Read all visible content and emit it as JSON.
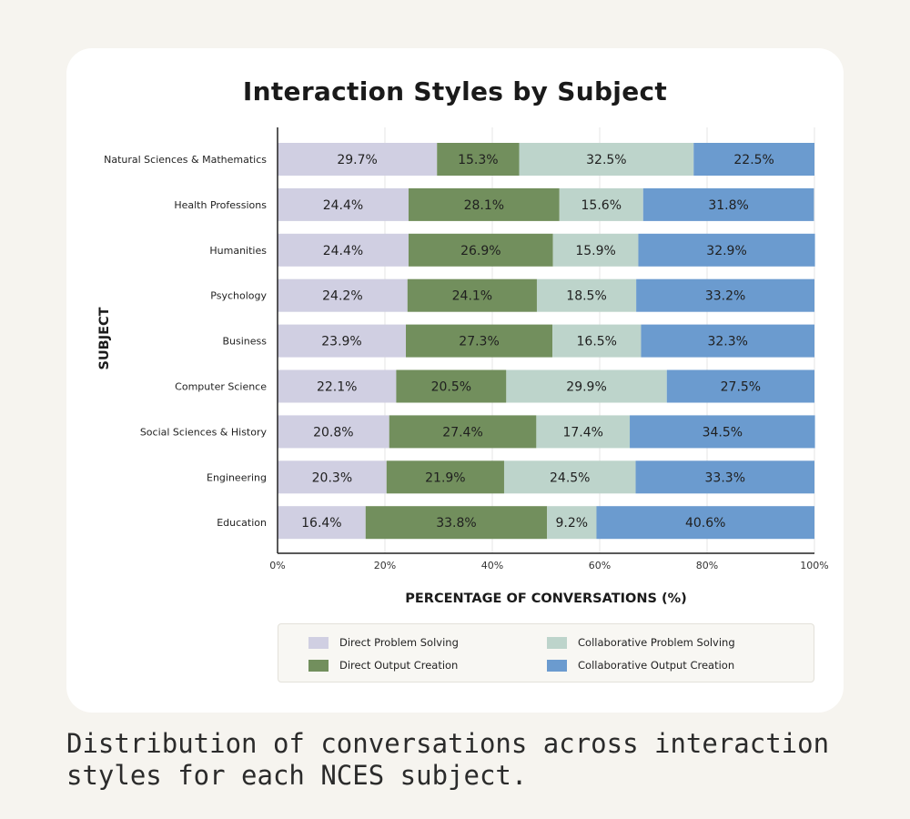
{
  "chart_data": {
    "type": "bar",
    "orientation": "horizontal",
    "stacked": true,
    "title": "Interaction Styles by Subject",
    "xlabel": "PERCENTAGE OF CONVERSATIONS (%)",
    "ylabel": "SUBJECT",
    "xlim": [
      0,
      100
    ],
    "xticks": [
      "0%",
      "20%",
      "40%",
      "60%",
      "80%",
      "100%"
    ],
    "categories": [
      "Natural Sciences & Mathematics",
      "Health Professions",
      "Humanities",
      "Psychology",
      "Business",
      "Computer Science",
      "Social Sciences & History",
      "Engineering",
      "Education"
    ],
    "series": [
      {
        "name": "Direct Problem Solving",
        "color": "#d0cfe2",
        "values": [
          29.7,
          24.4,
          24.4,
          24.2,
          23.9,
          22.1,
          20.8,
          20.3,
          16.4
        ]
      },
      {
        "name": "Direct Output Creation",
        "color": "#728f5d",
        "values": [
          15.3,
          28.1,
          26.9,
          24.1,
          27.3,
          20.5,
          27.4,
          21.9,
          33.8
        ]
      },
      {
        "name": "Collaborative Problem Solving",
        "color": "#bdd4cb",
        "values": [
          32.5,
          15.6,
          15.9,
          18.5,
          16.5,
          29.9,
          17.4,
          24.5,
          9.2
        ]
      },
      {
        "name": "Collaborative Output Creation",
        "color": "#6b9bcf",
        "values": [
          22.5,
          31.8,
          32.9,
          33.2,
          32.3,
          27.5,
          34.5,
          33.3,
          40.6
        ]
      }
    ],
    "legend": "bottom",
    "grid": true
  },
  "caption": "Distribution of conversations across interaction styles for each NCES subject."
}
